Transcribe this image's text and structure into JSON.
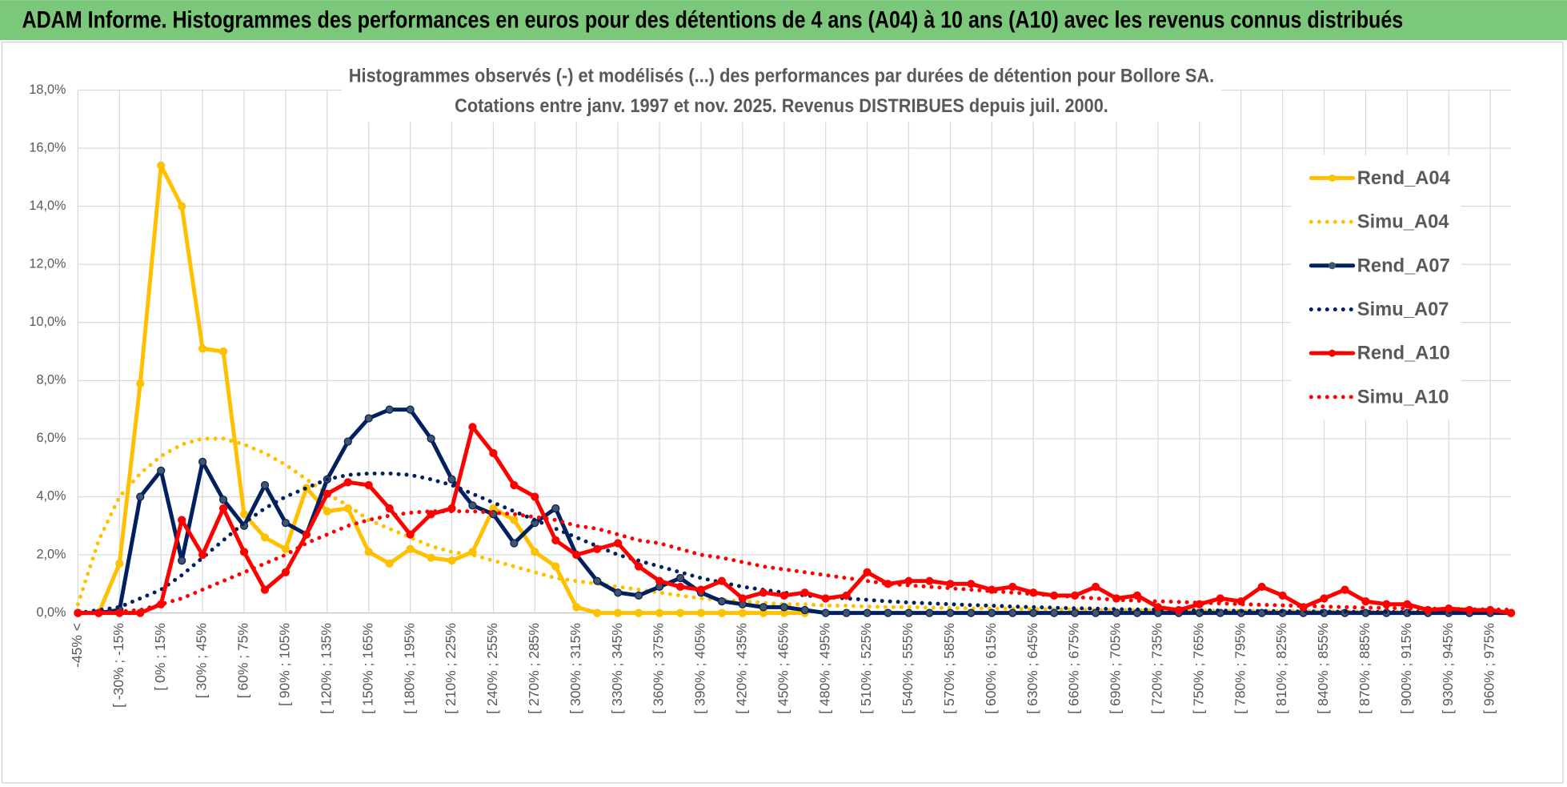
{
  "header": {
    "title": "ADAM Informe. Histogrammes des performances en euros pour des détentions de 4 ans (A04) à 10 ans (A10) avec les revenus connus distribués"
  },
  "chart_data": {
    "type": "line",
    "title": [
      "Histogrammes observés (-) et modélisés (...) des performances par durées de détention pour Bollore SA.",
      "Cotations entre janv. 1997 et nov. 2025. Revenus DISTRIBUES depuis juil. 2000."
    ],
    "categories": [
      "-45% <",
      null,
      "[ -30% ; -15%",
      null,
      "[ 0% ; 15%",
      null,
      "[ 30% ; 45%",
      null,
      "[ 60% ; 75%",
      null,
      "[ 90% ; 105%",
      null,
      "[ 120% ; 135%",
      null,
      "[ 150% ; 165%",
      null,
      "[ 180% ; 195%",
      null,
      "[ 210% ; 225%",
      null,
      "[ 240% ; 255%",
      null,
      "[ 270% ; 285%",
      null,
      "[ 300% ; 315%",
      null,
      "[ 330% ; 345%",
      null,
      "[ 360% ; 375%",
      null,
      "[ 390% ; 405%",
      null,
      "[ 420% ; 435%",
      null,
      "[ 450% ; 465%",
      null,
      "[ 480% ; 495%",
      null,
      "[ 510% ; 525%",
      null,
      "[ 540% ; 555%",
      null,
      "[ 570% ; 585%",
      null,
      "[ 600% ; 615%",
      null,
      "[ 630% ; 645%",
      null,
      "[ 660% ; 675%",
      null,
      "[ 690% ; 705%",
      null,
      "[ 720% ; 735%",
      null,
      "[ 750% ; 765%",
      null,
      "[ 780% ; 795%",
      null,
      "[ 810% ; 825%",
      null,
      "[ 840% ; 855%",
      null,
      "[ 870% ; 885%",
      null,
      "[ 900% ; 915%",
      null,
      "[ 930% ; 945%",
      null,
      "[ 960% ; 975%",
      null
    ],
    "series": [
      {
        "name": "Rend_A04",
        "color": "#ffc000",
        "style": "solid",
        "markers": true,
        "values": [
          0,
          0,
          1.7,
          7.9,
          15.4,
          14.0,
          9.1,
          9.0,
          3.4,
          2.6,
          2.2,
          4.3,
          3.5,
          3.6,
          2.1,
          1.7,
          2.2,
          1.9,
          1.8,
          2.1,
          3.6,
          3.2,
          2.1,
          1.6,
          0.2,
          0,
          0,
          0,
          0,
          0,
          0,
          0,
          0,
          0,
          0,
          0,
          null,
          null,
          null,
          null,
          null,
          null,
          null,
          null,
          null,
          null,
          null,
          null,
          null,
          null,
          null,
          null,
          null,
          null,
          null,
          null,
          null,
          null,
          null,
          null,
          null,
          null,
          null,
          null,
          null,
          null,
          null,
          null,
          null,
          null
        ]
      },
      {
        "name": "Simu_A04",
        "color": "#ffc000",
        "style": "dotted",
        "markers": false,
        "values": [
          0.3,
          2.5,
          4.0,
          4.8,
          5.4,
          5.8,
          6.0,
          6.0,
          5.8,
          5.5,
          5.1,
          4.6,
          4.1,
          3.7,
          3.2,
          2.9,
          2.6,
          2.3,
          2.1,
          2.0,
          1.8,
          1.6,
          1.4,
          1.2,
          1.1,
          1.0,
          0.9,
          0.8,
          0.7,
          0.6,
          0.5,
          0.45,
          0.4,
          0.35,
          0.3,
          0.3,
          0.25,
          0.25,
          0.22,
          0.2,
          0.2,
          0.18,
          0.17,
          0.16,
          0.15,
          0.14,
          0.13,
          0.12,
          0.11,
          0.1,
          0.1,
          0.09,
          0.09,
          0.08,
          0.08,
          0.07,
          0.07,
          0.06,
          0.06,
          0.06,
          0.05,
          0.05,
          0.05,
          0.04,
          0.04,
          0.04,
          0.04,
          0.03,
          0.03,
          0.03
        ]
      },
      {
        "name": "Rend_A07",
        "color": "#002060",
        "style": "solid",
        "markers": true,
        "values": [
          0,
          0,
          0.1,
          4.0,
          4.9,
          1.8,
          5.2,
          3.9,
          3.0,
          4.4,
          3.1,
          2.7,
          4.6,
          5.9,
          6.7,
          7.0,
          7.0,
          6.0,
          4.6,
          3.7,
          3.4,
          2.4,
          3.1,
          3.6,
          2.0,
          1.1,
          0.7,
          0.6,
          0.9,
          1.2,
          0.7,
          0.4,
          0.3,
          0.2,
          0.2,
          0.1,
          0,
          0,
          0,
          0,
          0,
          0,
          0,
          0,
          0,
          0,
          0,
          0,
          0,
          0,
          0,
          0,
          0,
          0,
          0,
          0,
          0,
          0,
          0,
          0,
          0,
          0,
          0,
          0,
          0,
          0,
          0,
          0,
          0,
          0
        ]
      },
      {
        "name": "Simu_A07",
        "color": "#002060",
        "style": "dotted",
        "markers": false,
        "values": [
          0,
          0.1,
          0.2,
          0.5,
          0.8,
          1.3,
          1.9,
          2.5,
          3.1,
          3.6,
          4.0,
          4.3,
          4.6,
          4.75,
          4.8,
          4.8,
          4.75,
          4.6,
          4.4,
          4.1,
          3.8,
          3.5,
          3.2,
          2.9,
          2.6,
          2.3,
          2.0,
          1.8,
          1.6,
          1.4,
          1.2,
          1.05,
          0.9,
          0.8,
          0.7,
          0.6,
          0.55,
          0.5,
          0.45,
          0.4,
          0.36,
          0.33,
          0.3,
          0.27,
          0.25,
          0.22,
          0.2,
          0.18,
          0.16,
          0.15,
          0.13,
          0.12,
          0.11,
          0.1,
          0.09,
          0.08,
          0.07,
          0.07,
          0.06,
          0.05,
          0.05,
          0.04,
          0.04,
          0.03,
          0.03,
          0.03,
          0.02,
          0.02,
          0.02,
          0.02
        ]
      },
      {
        "name": "Rend_A10",
        "color": "#ff0000",
        "style": "solid",
        "markers": true,
        "values": [
          0,
          0,
          0,
          0,
          0.3,
          3.2,
          2.0,
          3.6,
          2.1,
          0.8,
          1.4,
          2.7,
          4.1,
          4.5,
          4.4,
          3.6,
          2.7,
          3.4,
          3.6,
          6.4,
          5.5,
          4.4,
          4.0,
          2.5,
          2.0,
          2.2,
          2.4,
          1.6,
          1.1,
          0.9,
          0.8,
          1.1,
          0.5,
          0.7,
          0.6,
          0.7,
          0.5,
          0.6,
          1.4,
          1.0,
          1.1,
          1.1,
          1.0,
          1.0,
          0.8,
          0.9,
          0.7,
          0.6,
          0.6,
          0.9,
          0.5,
          0.6,
          0.2,
          0.1,
          0.3,
          0.5,
          0.4,
          0.9,
          0.6,
          0.2,
          0.5,
          0.8,
          0.4,
          0.3,
          0.3,
          0.1,
          0.15,
          0.1,
          0.1,
          0
        ]
      },
      {
        "name": "Simu_A10",
        "color": "#ff0000",
        "style": "dotted",
        "markers": false,
        "values": [
          0,
          0,
          0.05,
          0.1,
          0.3,
          0.5,
          0.8,
          1.1,
          1.4,
          1.7,
          2.0,
          2.4,
          2.7,
          3.0,
          3.2,
          3.35,
          3.45,
          3.5,
          3.5,
          3.5,
          3.45,
          3.4,
          3.3,
          3.2,
          3.0,
          2.9,
          2.7,
          2.5,
          2.4,
          2.2,
          2.0,
          1.9,
          1.75,
          1.6,
          1.5,
          1.4,
          1.3,
          1.2,
          1.1,
          1.0,
          0.95,
          0.9,
          0.85,
          0.8,
          0.75,
          0.7,
          0.65,
          0.6,
          0.55,
          0.5,
          0.45,
          0.42,
          0.4,
          0.38,
          0.35,
          0.33,
          0.3,
          0.28,
          0.26,
          0.24,
          0.22,
          0.2,
          0.18,
          0.17,
          0.16,
          0.15,
          0.14,
          0.13,
          0.12,
          0.11
        ]
      }
    ],
    "ylim": [
      0,
      18
    ],
    "yticks": [
      {
        "value": 0,
        "label": "0,0%"
      },
      {
        "value": 2,
        "label": "2,0%"
      },
      {
        "value": 4,
        "label": "4,0%"
      },
      {
        "value": 6,
        "label": "6,0%"
      },
      {
        "value": 8,
        "label": "8,0%"
      },
      {
        "value": 10,
        "label": "10,0%"
      },
      {
        "value": 12,
        "label": "12,0%"
      },
      {
        "value": 14,
        "label": "14,0%"
      },
      {
        "value": 16,
        "label": "16,0%"
      },
      {
        "value": 18,
        "label": "18,0%"
      }
    ],
    "grid": true,
    "legend": "right"
  }
}
